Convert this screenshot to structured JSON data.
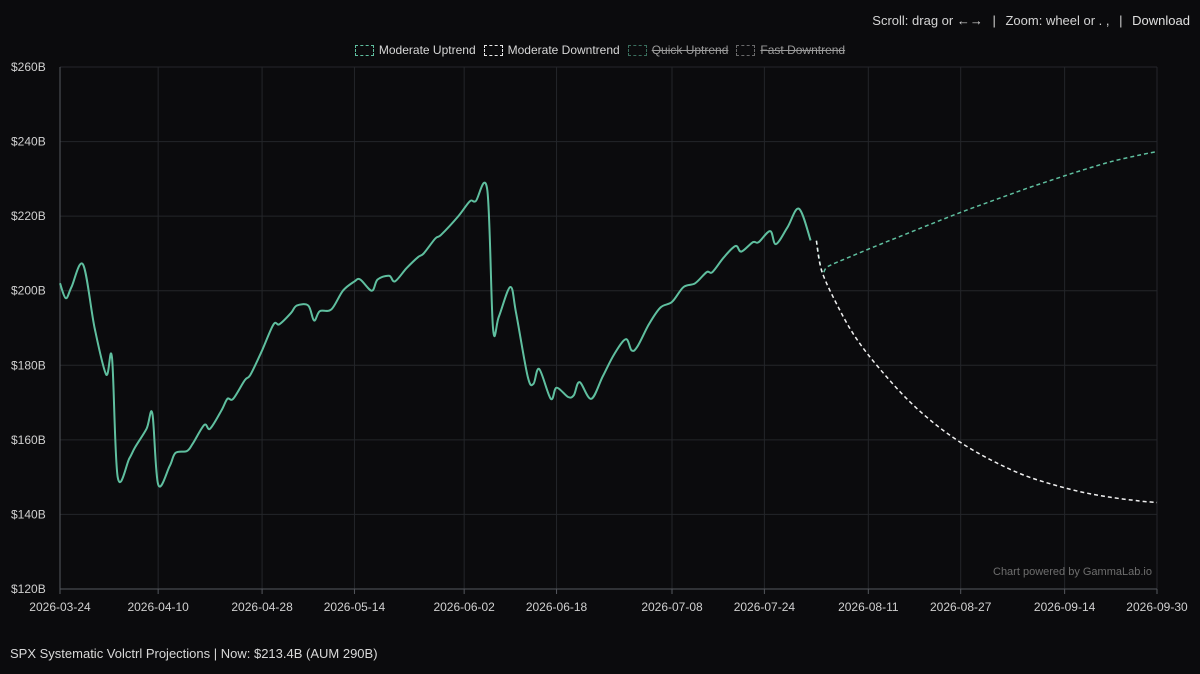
{
  "toolbar": {
    "scroll_label": "Scroll: drag or ←→",
    "zoom_label": "Zoom: wheel or . ,",
    "separator": "|",
    "download_label": "Download"
  },
  "legend": [
    {
      "label": "Moderate Uptrend",
      "color": "#5fbf9f",
      "hidden": false
    },
    {
      "label": "Moderate Downtrend",
      "color": "#e8e8e8",
      "hidden": false
    },
    {
      "label": "Quick Uptrend",
      "color": "#5fbf9f",
      "hidden": true
    },
    {
      "label": "Fast Downtrend",
      "color": "#b8b8b8",
      "hidden": true
    }
  ],
  "footer": {
    "title": "SPX Systematic Volctrl Projections | Now: $213.4B (AUM 290B)"
  },
  "credit": "Chart powered by GammaLab.io",
  "chart_data": {
    "type": "line",
    "ylim": [
      120,
      260
    ],
    "yticks": [
      120,
      140,
      160,
      180,
      200,
      220,
      240,
      260
    ],
    "ytick_labels": [
      "$120B",
      "$140B",
      "$160B",
      "$180B",
      "$200B",
      "$220B",
      "$240B",
      "$260B"
    ],
    "xlim": [
      "2026-03-24",
      "2026-09-30"
    ],
    "xtick_labels": [
      "2026-03-24",
      "2026-04-10",
      "2026-04-28",
      "2026-05-14",
      "2026-06-02",
      "2026-06-18",
      "2026-07-08",
      "2026-07-24",
      "2026-08-11",
      "2026-08-27",
      "2026-09-14",
      "2026-09-30"
    ],
    "grid": true,
    "colors": {
      "history": "#5fbf9f",
      "uptrend": "#5fbf9f",
      "downtrend": "#f0f0f0"
    },
    "series": [
      {
        "key": "history",
        "style": "solid",
        "points": [
          [
            "2026-03-24",
            202
          ],
          [
            "2026-03-25",
            198
          ],
          [
            "2026-03-26",
            201
          ],
          [
            "2026-03-28",
            207
          ],
          [
            "2026-03-30",
            190
          ],
          [
            "2026-04-01",
            177.5
          ],
          [
            "2026-04-02",
            182
          ],
          [
            "2026-04-03",
            150
          ],
          [
            "2026-04-05",
            155
          ],
          [
            "2026-04-06",
            158
          ],
          [
            "2026-04-08",
            163
          ],
          [
            "2026-04-09",
            167
          ],
          [
            "2026-04-10",
            148
          ],
          [
            "2026-04-12",
            153
          ],
          [
            "2026-04-13",
            156.5
          ],
          [
            "2026-04-15",
            157
          ],
          [
            "2026-04-16",
            159
          ],
          [
            "2026-04-18",
            164
          ],
          [
            "2026-04-19",
            163
          ],
          [
            "2026-04-21",
            168
          ],
          [
            "2026-04-22",
            171
          ],
          [
            "2026-04-23",
            171
          ],
          [
            "2026-04-25",
            176
          ],
          [
            "2026-04-26",
            177.5
          ],
          [
            "2026-04-28",
            184
          ],
          [
            "2026-04-30",
            191
          ],
          [
            "2026-05-01",
            191
          ],
          [
            "2026-05-03",
            194
          ],
          [
            "2026-05-04",
            196
          ],
          [
            "2026-05-06",
            196
          ],
          [
            "2026-05-07",
            192
          ],
          [
            "2026-05-08",
            194.5
          ],
          [
            "2026-05-10",
            195
          ],
          [
            "2026-05-12",
            200
          ],
          [
            "2026-05-14",
            202.5
          ],
          [
            "2026-05-15",
            203
          ],
          [
            "2026-05-17",
            200
          ],
          [
            "2026-05-18",
            203
          ],
          [
            "2026-05-20",
            204
          ],
          [
            "2026-05-21",
            202.5
          ],
          [
            "2026-05-23",
            206
          ],
          [
            "2026-05-25",
            209
          ],
          [
            "2026-05-26",
            210
          ],
          [
            "2026-05-28",
            214
          ],
          [
            "2026-05-29",
            215
          ],
          [
            "2026-06-01",
            220
          ],
          [
            "2026-06-03",
            224
          ],
          [
            "2026-06-04",
            224
          ],
          [
            "2026-06-06",
            227
          ],
          [
            "2026-06-07",
            190
          ],
          [
            "2026-06-08",
            193
          ],
          [
            "2026-06-10",
            201
          ],
          [
            "2026-06-11",
            194
          ],
          [
            "2026-06-13",
            177
          ],
          [
            "2026-06-14",
            175
          ],
          [
            "2026-06-15",
            179
          ],
          [
            "2026-06-17",
            171
          ],
          [
            "2026-06-18",
            174
          ],
          [
            "2026-06-20",
            171.5
          ],
          [
            "2026-06-21",
            172
          ],
          [
            "2026-06-22",
            175.5
          ],
          [
            "2026-06-24",
            171
          ],
          [
            "2026-06-26",
            177
          ],
          [
            "2026-06-28",
            183
          ],
          [
            "2026-06-30",
            187
          ],
          [
            "2026-07-01",
            184
          ],
          [
            "2026-07-02",
            185
          ],
          [
            "2026-07-04",
            191
          ],
          [
            "2026-07-06",
            195.5
          ],
          [
            "2026-07-08",
            197
          ],
          [
            "2026-07-10",
            201
          ],
          [
            "2026-07-12",
            202
          ],
          [
            "2026-07-14",
            205
          ],
          [
            "2026-07-15",
            205
          ],
          [
            "2026-07-17",
            209
          ],
          [
            "2026-07-19",
            212
          ],
          [
            "2026-07-20",
            210.5
          ],
          [
            "2026-07-22",
            213
          ],
          [
            "2026-07-23",
            213
          ],
          [
            "2026-07-25",
            216
          ],
          [
            "2026-07-26",
            212.5
          ],
          [
            "2026-07-28",
            217
          ],
          [
            "2026-07-30",
            222
          ],
          [
            "2026-08-01",
            213.5
          ]
        ]
      },
      {
        "key": "uptrend",
        "name": "Moderate Uptrend",
        "style": "dashed",
        "points": [
          [
            "2026-08-02",
            213.4
          ],
          [
            "2026-08-03",
            205
          ],
          [
            "2026-08-04",
            206.5
          ],
          [
            "2026-08-08",
            209.2
          ],
          [
            "2026-08-13",
            212.4
          ],
          [
            "2026-08-18",
            215.5
          ],
          [
            "2026-08-23",
            218.6
          ],
          [
            "2026-08-28",
            221.6
          ],
          [
            "2026-09-02",
            224.4
          ],
          [
            "2026-09-07",
            227.2
          ],
          [
            "2026-09-12",
            229.8
          ],
          [
            "2026-09-17",
            232.3
          ],
          [
            "2026-09-22",
            234.6
          ],
          [
            "2026-09-27",
            236.4
          ],
          [
            "2026-09-30",
            237.3
          ]
        ]
      },
      {
        "key": "downtrend",
        "name": "Moderate Downtrend",
        "style": "dashed",
        "points": [
          [
            "2026-08-02",
            213.4
          ],
          [
            "2026-08-03",
            205
          ],
          [
            "2026-08-06",
            195
          ],
          [
            "2026-08-09",
            187
          ],
          [
            "2026-08-13",
            179
          ],
          [
            "2026-08-18",
            170.5
          ],
          [
            "2026-08-23",
            163.7
          ],
          [
            "2026-08-28",
            158.3
          ],
          [
            "2026-09-02",
            154
          ],
          [
            "2026-09-07",
            150.5
          ],
          [
            "2026-09-12",
            148
          ],
          [
            "2026-09-17",
            146
          ],
          [
            "2026-09-22",
            144.6
          ],
          [
            "2026-09-27",
            143.6
          ],
          [
            "2026-09-30",
            143.2
          ]
        ]
      }
    ]
  }
}
